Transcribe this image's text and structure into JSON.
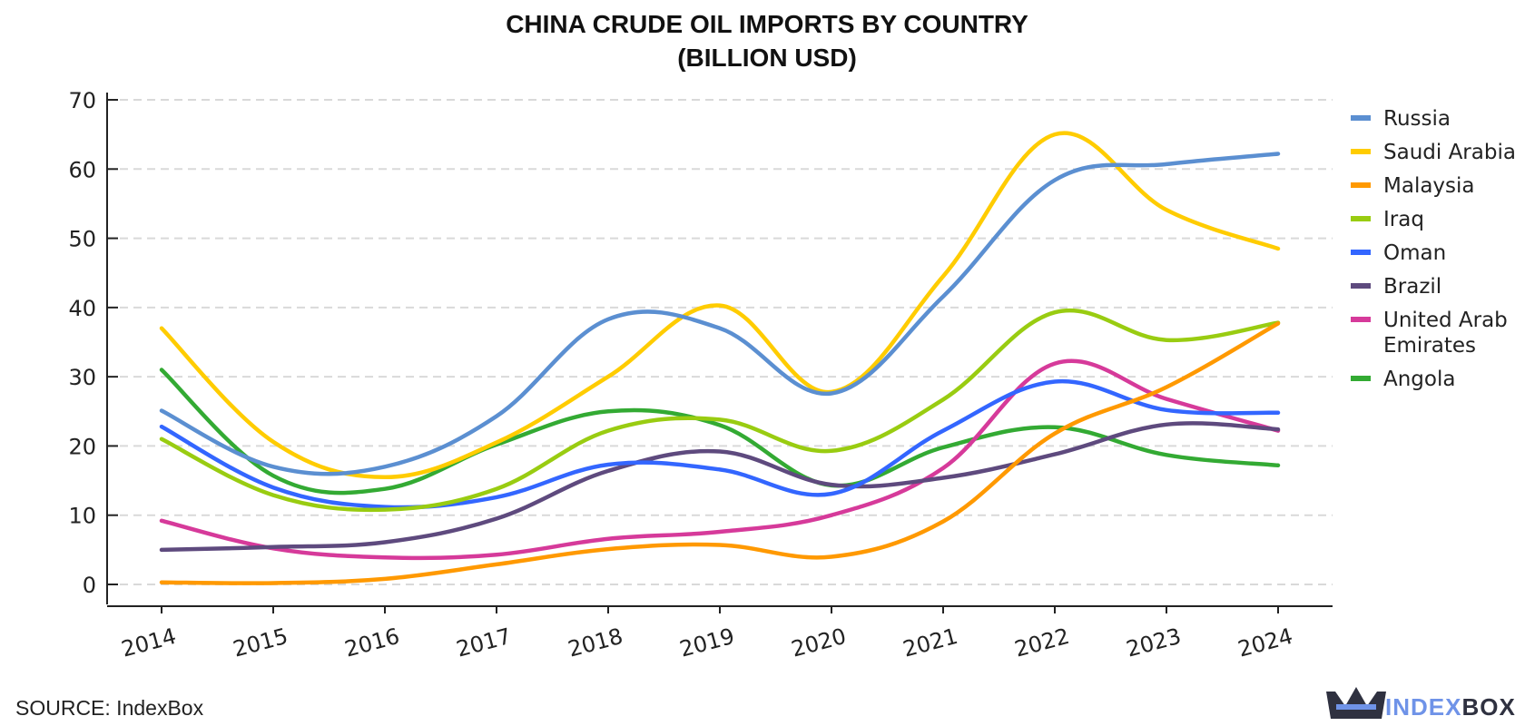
{
  "chart_data": {
    "type": "line",
    "title": "CHINA CRUDE OIL IMPORTS BY COUNTRY",
    "subtitle": "(BILLION USD)",
    "xlabel": "",
    "ylabel": "",
    "x": [
      "2014",
      "2015",
      "2016",
      "2017",
      "2018",
      "2019",
      "2020",
      "2021",
      "2022",
      "2023",
      "2024"
    ],
    "yticks": [
      0,
      10,
      20,
      30,
      40,
      50,
      60,
      70
    ],
    "ylim": [
      -3,
      72
    ],
    "grid": true,
    "legend_position": "right",
    "series": [
      {
        "name": "Russia",
        "color": "#5b8fd1",
        "values": [
          25.1,
          17.0,
          17.0,
          24.3,
          38.3,
          37.0,
          27.6,
          41.6,
          58.4,
          60.7,
          62.2
        ]
      },
      {
        "name": "Saudi Arabia",
        "color": "#ffcc00",
        "values": [
          37.0,
          20.6,
          15.5,
          20.5,
          30.0,
          40.3,
          27.8,
          44.5,
          65.0,
          54.1,
          48.5
        ]
      },
      {
        "name": "Malaysia",
        "color": "#ff9900",
        "values": [
          0.3,
          0.2,
          0.8,
          2.9,
          5.1,
          5.7,
          4.0,
          9.1,
          21.8,
          28.5,
          37.7
        ]
      },
      {
        "name": "Iraq",
        "color": "#99cc11",
        "values": [
          21.0,
          12.9,
          10.8,
          13.8,
          22.2,
          23.8,
          19.3,
          26.7,
          39.3,
          35.3,
          37.8
        ]
      },
      {
        "name": "Oman",
        "color": "#3366ff",
        "values": [
          22.8,
          14.0,
          11.2,
          12.6,
          17.3,
          16.6,
          13.1,
          22.2,
          29.3,
          25.2,
          24.8
        ]
      },
      {
        "name": "Brazil",
        "color": "#5e4a7e",
        "values": [
          5.0,
          5.4,
          6.1,
          9.5,
          16.4,
          19.2,
          14.4,
          15.4,
          18.8,
          23.1,
          22.4
        ]
      },
      {
        "name": "United Arab Emirates",
        "color": "#d63a9a",
        "values": [
          9.2,
          5.2,
          3.9,
          4.3,
          6.6,
          7.6,
          10.0,
          16.8,
          31.9,
          26.8,
          22.2
        ]
      },
      {
        "name": "Angola",
        "color": "#33aa33",
        "values": [
          31.0,
          15.7,
          13.8,
          20.2,
          25.0,
          23.0,
          14.3,
          19.8,
          22.7,
          18.7,
          17.2
        ]
      }
    ]
  },
  "footer": {
    "source": "SOURCE: IndexBox",
    "brand_part1": "INDEX",
    "brand_part2": "BOX",
    "brand_color1": "#6f93e8",
    "brand_color2": "#2f3140"
  }
}
